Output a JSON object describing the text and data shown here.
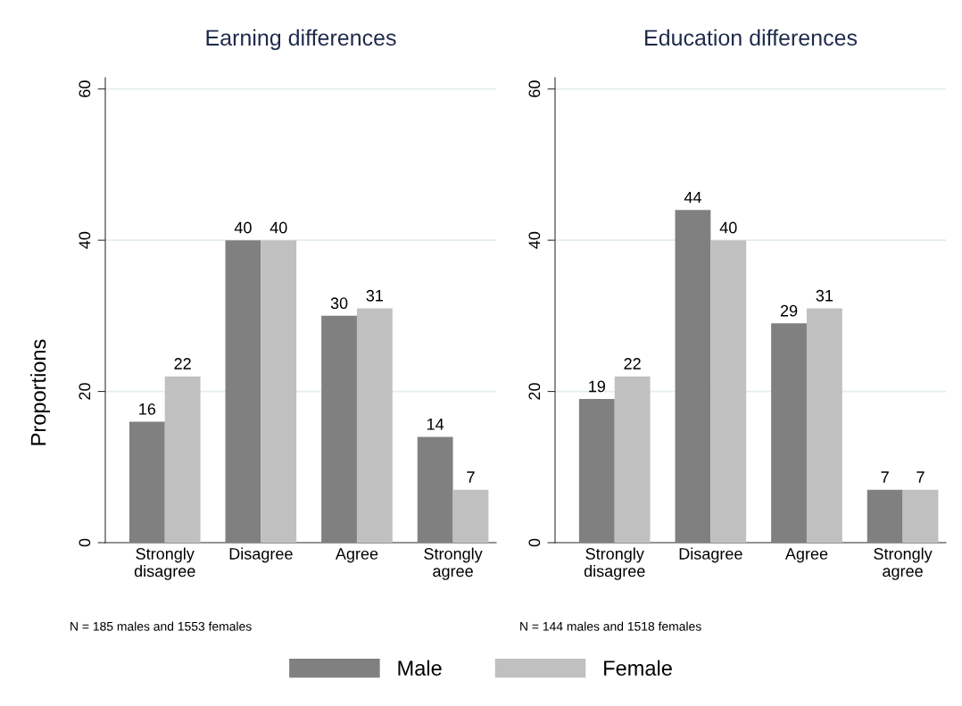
{
  "chart_data": [
    {
      "type": "bar",
      "title": "Earning differences",
      "ylabel": "Proportions",
      "categories": [
        "Strongly\ndisagree",
        "Disagree",
        "Agree",
        "Strongly\nagree"
      ],
      "series": [
        {
          "name": "Male",
          "color": "#808080",
          "values": [
            16,
            40,
            30,
            14
          ]
        },
        {
          "name": "Female",
          "color": "#c0c0c0",
          "values": [
            22,
            40,
            31,
            7
          ]
        }
      ],
      "ylim": [
        0,
        61.5
      ],
      "yticks": [
        0,
        20,
        40,
        60
      ],
      "grid": "y",
      "data_labels": true,
      "legend": "bottom",
      "annotations": [
        "N = 185 males and 1553 females"
      ]
    },
    {
      "type": "bar",
      "title": "Education differences",
      "categories": [
        "Strongly\ndisagree",
        "Disagree",
        "Agree",
        "Strongly\nagree"
      ],
      "series": [
        {
          "color": "#808080",
          "values": [
            19,
            44,
            29,
            7
          ]
        },
        {
          "color": "#c0c0c0",
          "values": [
            22,
            40,
            31,
            7
          ]
        }
      ],
      "ylim": [
        0,
        61.5
      ],
      "yticks": [
        0,
        20,
        40,
        60
      ],
      "grid": "y",
      "data_labels": true,
      "annotations": [
        "N = 144 males and 1518 females"
      ]
    }
  ]
}
